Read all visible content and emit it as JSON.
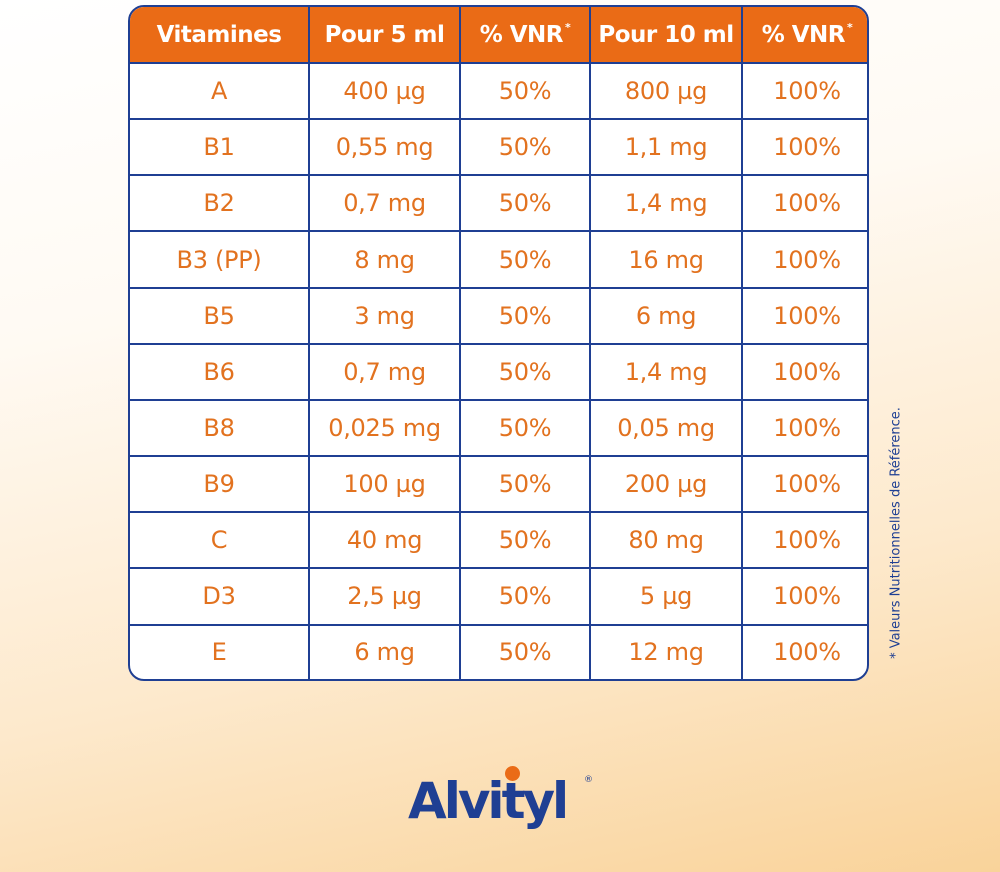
{
  "table": {
    "headers": [
      {
        "label": "Vitamines",
        "sup": ""
      },
      {
        "label": "Pour 5 ml",
        "sup": ""
      },
      {
        "label": "% VNR",
        "sup": "*"
      },
      {
        "label": "Pour 10 ml",
        "sup": ""
      },
      {
        "label": "% VNR",
        "sup": "*"
      }
    ],
    "rows": [
      [
        "A",
        "400 µg",
        "50%",
        "800 µg",
        "100%"
      ],
      [
        "B1",
        "0,55 mg",
        "50%",
        "1,1 mg",
        "100%"
      ],
      [
        "B2",
        "0,7 mg",
        "50%",
        "1,4 mg",
        "100%"
      ],
      [
        "B3 (PP)",
        "8 mg",
        "50%",
        "16 mg",
        "100%"
      ],
      [
        "B5",
        "3 mg",
        "50%",
        "6 mg",
        "100%"
      ],
      [
        "B6",
        "0,7 mg",
        "50%",
        "1,4 mg",
        "100%"
      ],
      [
        "B8",
        "0,025 mg",
        "50%",
        "0,05 mg",
        "100%"
      ],
      [
        "B9",
        "100 µg",
        "50%",
        "200 µg",
        "100%"
      ],
      [
        "C",
        "40 mg",
        "50%",
        "80 mg",
        "100%"
      ],
      [
        "D3",
        "2,5 µg",
        "50%",
        "5 µg",
        "100%"
      ],
      [
        "E",
        "6 mg",
        "50%",
        "12 mg",
        "100%"
      ]
    ]
  },
  "footnote": "* Valeurs Nutritionnelles de Référence.",
  "logo": {
    "text": "Alvityl",
    "registered": "®"
  },
  "colors": {
    "header_bg": "#ea6b16",
    "cell_text": "#e2721f",
    "border": "#1f3f93",
    "logo_blue": "#1f3f93",
    "logo_dot": "#ea6b16"
  }
}
